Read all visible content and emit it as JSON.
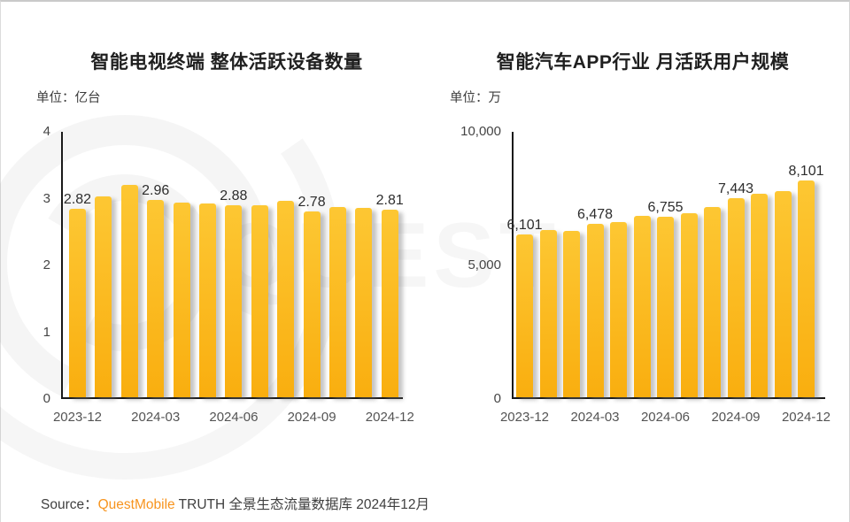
{
  "watermark": {
    "text": "QUEST"
  },
  "colors": {
    "bar_top": "#FDC733",
    "bar_bottom": "#F9AE0F",
    "bar_shadow": "#6E6E6E",
    "brand_orange": "#F7941E",
    "axis": "#1A1A1A",
    "title_text": "#1F1F1F",
    "tick_text": "#454545"
  },
  "source": {
    "label": "Source：",
    "brand": "QuestMobile",
    "rest": " TRUTH 全景生态流量数据库 2024年12月"
  },
  "chart_data": [
    {
      "type": "bar",
      "title": "智能电视终端 整体活跃设备数量",
      "unit_label": "单位：亿台",
      "ylabel": "",
      "xlabel": "",
      "ylim": [
        0,
        4
      ],
      "grid": false,
      "legend_position": "none",
      "y_ticks": [
        {
          "value": 4,
          "label": "4"
        },
        {
          "value": 3,
          "label": "3"
        },
        {
          "value": 2,
          "label": "2"
        },
        {
          "value": 1,
          "label": "1"
        },
        {
          "value": 0,
          "label": "0"
        }
      ],
      "x_tick_labels": [
        "2023-12",
        "2024-03",
        "2024-06",
        "2024-09",
        "2024-12"
      ],
      "x_tick_bar_indices": [
        0,
        3,
        6,
        9,
        12
      ],
      "values": [
        2.82,
        3.01,
        3.18,
        2.96,
        2.92,
        2.9,
        2.88,
        2.87,
        2.94,
        2.78,
        2.85,
        2.83,
        2.81
      ],
      "data_labels": [
        {
          "index": 0,
          "text": "2.82"
        },
        {
          "index": 3,
          "text": "2.96"
        },
        {
          "index": 6,
          "text": "2.88"
        },
        {
          "index": 9,
          "text": "2.78"
        },
        {
          "index": 12,
          "text": "2.81"
        }
      ]
    },
    {
      "type": "bar",
      "title": "智能汽车APP行业 月活跃用户规模",
      "unit_label": "单位：万",
      "ylabel": "",
      "xlabel": "",
      "ylim": [
        0,
        10000
      ],
      "grid": false,
      "legend_position": "none",
      "y_ticks": [
        {
          "value": 10000,
          "label": "10,000"
        },
        {
          "value": 5000,
          "label": "5,000"
        },
        {
          "value": 0,
          "label": "0"
        }
      ],
      "x_tick_labels": [
        "2023-12",
        "2024-03",
        "2024-06",
        "2024-09",
        "2024-12"
      ],
      "x_tick_bar_indices": [
        0,
        3,
        6,
        9,
        12
      ],
      "values": [
        6101,
        6270,
        6230,
        6478,
        6560,
        6790,
        6755,
        6900,
        7120,
        7443,
        7630,
        7720,
        8101
      ],
      "data_labels": [
        {
          "index": 0,
          "text": "6,101"
        },
        {
          "index": 3,
          "text": "6,478"
        },
        {
          "index": 6,
          "text": "6,755"
        },
        {
          "index": 9,
          "text": "7,443"
        },
        {
          "index": 12,
          "text": "8,101"
        }
      ]
    }
  ]
}
